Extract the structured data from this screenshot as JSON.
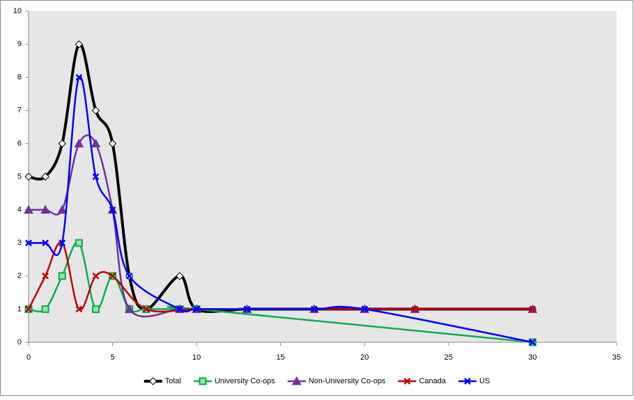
{
  "chart_data": {
    "type": "line",
    "smooth": true,
    "grid": false,
    "xlim": [
      0,
      35
    ],
    "xticks": [
      0,
      5,
      10,
      15,
      20,
      25,
      30,
      35
    ],
    "ylim": [
      0,
      10
    ],
    "yticks": [
      0,
      1,
      2,
      3,
      4,
      5,
      6,
      7,
      8,
      9,
      10
    ],
    "legend": "bottom",
    "series": [
      {
        "name": "Total",
        "color": "#000000",
        "marker": "diamond",
        "x": [
          0,
          1,
          2,
          3,
          4,
          5,
          6,
          7,
          9,
          10,
          13,
          17,
          20,
          23,
          30
        ],
        "values": [
          5,
          5,
          6,
          9,
          7,
          6,
          2,
          1,
          2,
          1,
          1,
          1,
          1,
          1,
          1
        ]
      },
      {
        "name": "University Co-ops",
        "color": "#00b050",
        "marker": "square",
        "x": [
          0,
          1,
          2,
          3,
          4,
          5,
          6,
          7,
          9,
          10,
          30
        ],
        "values": [
          1,
          1,
          2,
          3,
          1,
          2,
          1,
          1,
          1,
          1,
          0
        ]
      },
      {
        "name": "Non-University Co-ops",
        "color": "#7030a0",
        "marker": "triangle",
        "x": [
          0,
          1,
          2,
          3,
          4,
          5,
          6,
          9,
          10,
          13,
          17,
          20,
          23,
          30
        ],
        "values": [
          4,
          4,
          4,
          6,
          6,
          4,
          1,
          1,
          1,
          1,
          1,
          1,
          1,
          1
        ]
      },
      {
        "name": "Canada",
        "color": "#c00000",
        "marker": "x",
        "x": [
          0,
          1,
          2,
          3,
          4,
          5,
          7,
          10,
          13,
          17,
          20,
          23,
          30
        ],
        "values": [
          1,
          2,
          3,
          1,
          2,
          2,
          1,
          1,
          1,
          1,
          1,
          1,
          1
        ]
      },
      {
        "name": "US",
        "color": "#0000ff",
        "marker": "x",
        "x": [
          0,
          1,
          2,
          3,
          4,
          5,
          6,
          9,
          10,
          13,
          17,
          20,
          30
        ],
        "values": [
          3,
          3,
          3,
          8,
          5,
          4,
          2,
          1,
          1,
          1,
          1,
          1,
          0
        ]
      }
    ]
  }
}
